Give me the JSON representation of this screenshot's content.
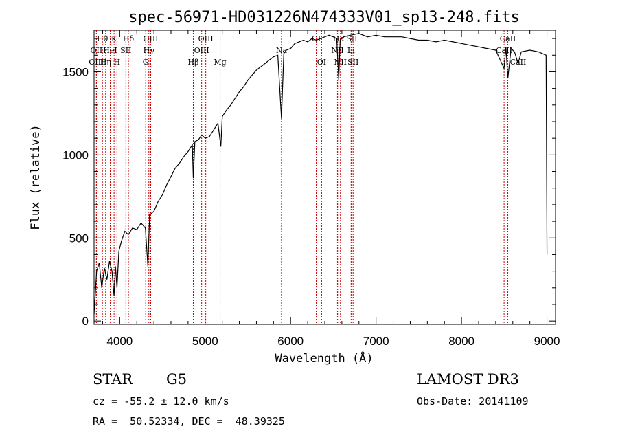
{
  "chart_data": {
    "type": "line",
    "title": "spec-56971-HD031226N474333V01_sp13-248.fits",
    "xlabel": "Wavelength (Å)",
    "ylabel": "Flux (relative)",
    "xlim": [
      3700,
      9100
    ],
    "ylim": [
      -20,
      1750
    ],
    "xticks": [
      4000,
      5000,
      6000,
      7000,
      8000,
      9000
    ],
    "yticks": [
      0,
      500,
      1000,
      1500
    ],
    "grid": false,
    "series": [
      {
        "x": [
          3700,
          3730,
          3760,
          3790,
          3820,
          3850,
          3880,
          3910,
          3934,
          3950,
          3968,
          3990,
          4020,
          4060,
          4100,
          4150,
          4200,
          4250,
          4300,
          4330,
          4350,
          4400,
          4450,
          4500,
          4550,
          4600,
          4650,
          4700,
          4750,
          4800,
          4850,
          4861,
          4880,
          4920,
          4960,
          5000,
          5050,
          5100,
          5150,
          5183,
          5200,
          5250,
          5300,
          5350,
          5400,
          5450,
          5500,
          5550,
          5600,
          5650,
          5700,
          5750,
          5800,
          5850,
          5893,
          5920,
          5950,
          6000,
          6050,
          6100,
          6150,
          6200,
          6250,
          6300,
          6350,
          6400,
          6450,
          6500,
          6540,
          6563,
          6580,
          6620,
          6700,
          6800,
          6900,
          7000,
          7100,
          7200,
          7300,
          7400,
          7500,
          7600,
          7700,
          7800,
          7900,
          8000,
          8100,
          8200,
          8300,
          8400,
          8498,
          8520,
          8542,
          8580,
          8620,
          8662,
          8700,
          8800,
          8900,
          8990,
          9000
        ],
        "y": [
          40,
          300,
          350,
          200,
          320,
          250,
          360,
          300,
          150,
          330,
          200,
          420,
          480,
          540,
          520,
          560,
          550,
          590,
          560,
          330,
          640,
          660,
          720,
          760,
          820,
          870,
          920,
          950,
          990,
          1020,
          1060,
          860,
          1080,
          1090,
          1120,
          1100,
          1110,
          1150,
          1190,
          1050,
          1230,
          1270,
          1300,
          1340,
          1380,
          1410,
          1450,
          1480,
          1510,
          1530,
          1550,
          1570,
          1590,
          1600,
          1220,
          1610,
          1630,
          1640,
          1670,
          1680,
          1690,
          1680,
          1700,
          1690,
          1700,
          1710,
          1720,
          1710,
          1700,
          1450,
          1690,
          1710,
          1720,
          1730,
          1710,
          1720,
          1710,
          1710,
          1710,
          1700,
          1690,
          1690,
          1680,
          1690,
          1680,
          1670,
          1660,
          1650,
          1640,
          1630,
          1520,
          1650,
          1460,
          1640,
          1620,
          1550,
          1620,
          1630,
          1620,
          1600,
          400
        ]
      }
    ],
    "line_markers": [
      {
        "label": "Hθ",
        "wave": 3798,
        "row": 0
      },
      {
        "label": "OII",
        "wave": 3727,
        "row": 1
      },
      {
        "label": "OIII",
        "wave": 3727,
        "row": 2
      },
      {
        "label": "K",
        "wave": 3934,
        "row": 0
      },
      {
        "label": "HeI",
        "wave": 3889,
        "row": 1
      },
      {
        "label": "Hη",
        "wave": 3835,
        "row": 2
      },
      {
        "label": "Hδ",
        "wave": 4102,
        "row": 0
      },
      {
        "label": "SII",
        "wave": 4072,
        "row": 1
      },
      {
        "label": "H",
        "wave": 3968,
        "row": 2
      },
      {
        "label": "OIII",
        "wave": 4363,
        "row": 0
      },
      {
        "label": "Hγ",
        "wave": 4341,
        "row": 1
      },
      {
        "label": "G",
        "wave": 4304,
        "row": 2
      },
      {
        "label": "OIII",
        "wave": 5007,
        "row": 0
      },
      {
        "label": "OIII",
        "wave": 4959,
        "row": 1
      },
      {
        "label": "Hβ",
        "wave": 4861,
        "row": 2
      },
      {
        "label": "Mg",
        "wave": 5175,
        "row": 2
      },
      {
        "label": "Na",
        "wave": 5893,
        "row": 1
      },
      {
        "label": "OI",
        "wave": 6300,
        "row": 0
      },
      {
        "label": "OI",
        "wave": 6363,
        "row": 2
      },
      {
        "label": "Hα",
        "wave": 6563,
        "row": 0
      },
      {
        "label": "NII",
        "wave": 6548,
        "row": 1
      },
      {
        "label": "NII",
        "wave": 6583,
        "row": 2
      },
      {
        "label": "SII",
        "wave": 6716,
        "row": 0
      },
      {
        "label": "Li",
        "wave": 6708,
        "row": 1
      },
      {
        "label": "SII",
        "wave": 6731,
        "row": 2
      },
      {
        "label": "CaII",
        "wave": 8542,
        "row": 0
      },
      {
        "label": "CaII",
        "wave": 8498,
        "row": 1
      },
      {
        "label": "CaII",
        "wave": 8662,
        "row": 2
      }
    ]
  },
  "footer": {
    "object_class": "STAR",
    "subclass": "G5",
    "survey": "LAMOST DR3",
    "cz": "cz = -55.2 ± 12.0 km/s",
    "obs_date": "Obs-Date: 20141109",
    "coords": "RA =  50.52334, DEC =  48.39325"
  }
}
